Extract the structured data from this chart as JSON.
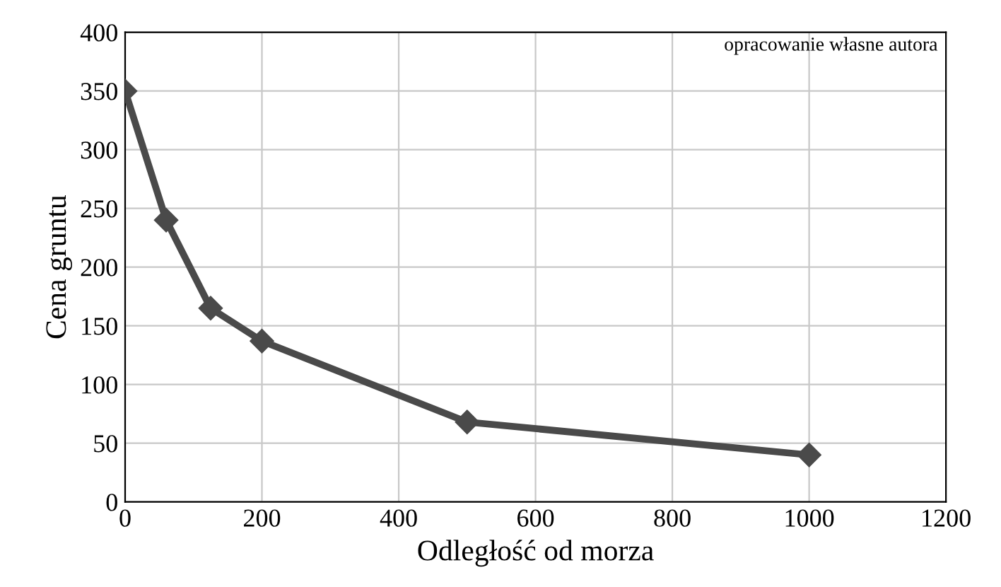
{
  "chart_data": {
    "type": "line",
    "xlabel": "Odległość od morza",
    "ylabel": "Cena gruntu",
    "annotations": [
      "opracowanie własne autora"
    ],
    "x": [
      0,
      60,
      125,
      200,
      500,
      1000
    ],
    "series": [
      {
        "color": "#4a4a4a",
        "values": [
          350,
          240,
          165,
          137,
          68,
          40
        ]
      }
    ],
    "xlim": [
      0,
      1200
    ],
    "xticks": [
      0,
      200,
      400,
      600,
      800,
      1000,
      1200
    ],
    "ylim": [
      0,
      400
    ],
    "yticks": [
      0,
      50,
      100,
      150,
      200,
      250,
      300,
      350,
      400
    ],
    "grid": true,
    "marker": "diamond",
    "line_style": "solid",
    "legend": false
  }
}
